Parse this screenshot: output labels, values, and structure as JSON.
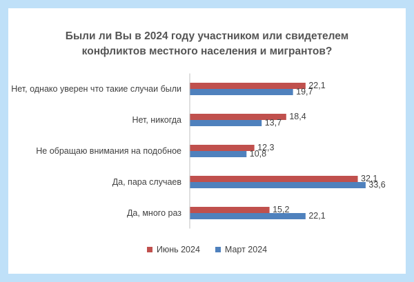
{
  "chart_data": {
    "type": "bar",
    "orientation": "horizontal",
    "title_lines": [
      "Были ли Вы в 2024 году участником или свидетелем",
      "конфликтов местного населения и мигрантов?"
    ],
    "categories": [
      "Нет, однако уверен что такие случаи были",
      "Нет, никогда",
      "Не обращаю внимания на подобное",
      "Да, пара случаев",
      "Да, много раз"
    ],
    "series": [
      {
        "name": "Июнь 2024",
        "color": "#c0504d",
        "values": [
          22.1,
          18.4,
          12.3,
          32.1,
          15.2
        ],
        "labels": [
          "22,1",
          "18,4",
          "12,3",
          "32,1",
          "15,2"
        ]
      },
      {
        "name": "Март 2024",
        "color": "#4f81bd",
        "values": [
          19.7,
          13.7,
          10.8,
          33.6,
          22.1
        ],
        "labels": [
          "19,7",
          "13,7",
          "10,8",
          "33,6",
          "22,1"
        ]
      }
    ],
    "xlim": [
      0,
      35
    ],
    "grid": false,
    "legend": "bottom"
  }
}
